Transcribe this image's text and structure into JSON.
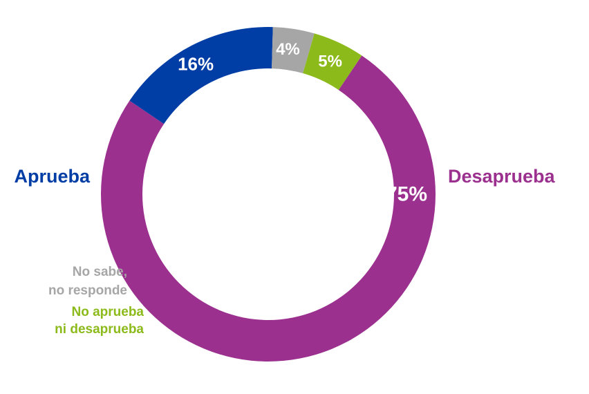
{
  "chart_data": {
    "type": "pie",
    "style": "donut",
    "slices": [
      {
        "label": "Desaprueba",
        "value": 75,
        "value_label": "75%",
        "color": "#9b308f"
      },
      {
        "label": "Aprueba",
        "value": 16,
        "value_label": "16%",
        "color": "#003da5"
      },
      {
        "label": "No sabe, no responde",
        "label_lines": [
          "No sabe,",
          "no responde"
        ],
        "value": 4,
        "value_label": "4%",
        "color": "#a6a6a6"
      },
      {
        "label": "No aprueba ni desaprueba",
        "label_lines": [
          "No aprueba",
          "ni desaprueba"
        ],
        "value": 5,
        "value_label": "5%",
        "color": "#8cba1b"
      }
    ]
  }
}
